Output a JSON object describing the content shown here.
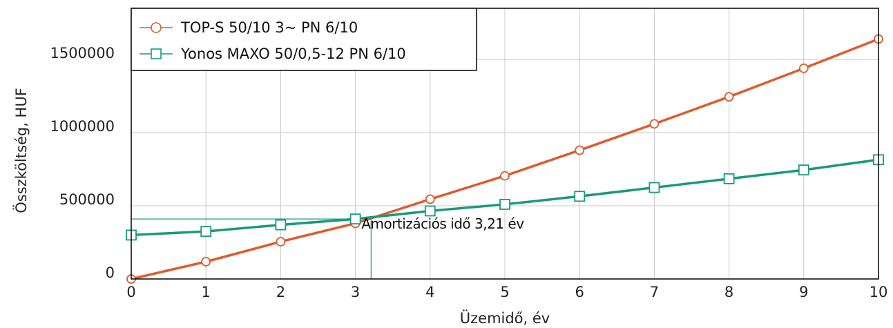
{
  "chart_data": {
    "type": "line",
    "xlabel": "Üzemidő, év",
    "ylabel": "Összköltség, HUF",
    "xlim": [
      0,
      10
    ],
    "ylim": [
      0,
      1850000
    ],
    "x_ticks": [
      "0",
      "1",
      "2",
      "3",
      "4",
      "5",
      "6",
      "7",
      "8",
      "9",
      "10"
    ],
    "y_ticks": [
      "0",
      "500000",
      "1000000",
      "1500000"
    ],
    "y_tick_values": [
      0,
      500000,
      1000000,
      1500000
    ],
    "grid": true,
    "legend_position": "top-left",
    "x": [
      0,
      1,
      2,
      3,
      4,
      5,
      6,
      7,
      8,
      9,
      10
    ],
    "series": [
      {
        "name": "TOP-S 50/10  3~ PN 6/10",
        "color": "#e05a2b",
        "marker": "circle",
        "values": [
          0,
          118000,
          255000,
          380000,
          545000,
          705000,
          880000,
          1060000,
          1245000,
          1440000,
          1640000
        ]
      },
      {
        "name": "Yonos MAXO 50/0,5-12 PN 6/10",
        "color": "#1a9a7c",
        "marker": "square",
        "values": [
          300000,
          325000,
          370000,
          410000,
          465000,
          510000,
          565000,
          625000,
          685000,
          745000,
          815000
        ]
      }
    ],
    "annotation": {
      "text": "Amortizációs idő 3,21 év",
      "x": 3.21,
      "y": 410000
    }
  }
}
